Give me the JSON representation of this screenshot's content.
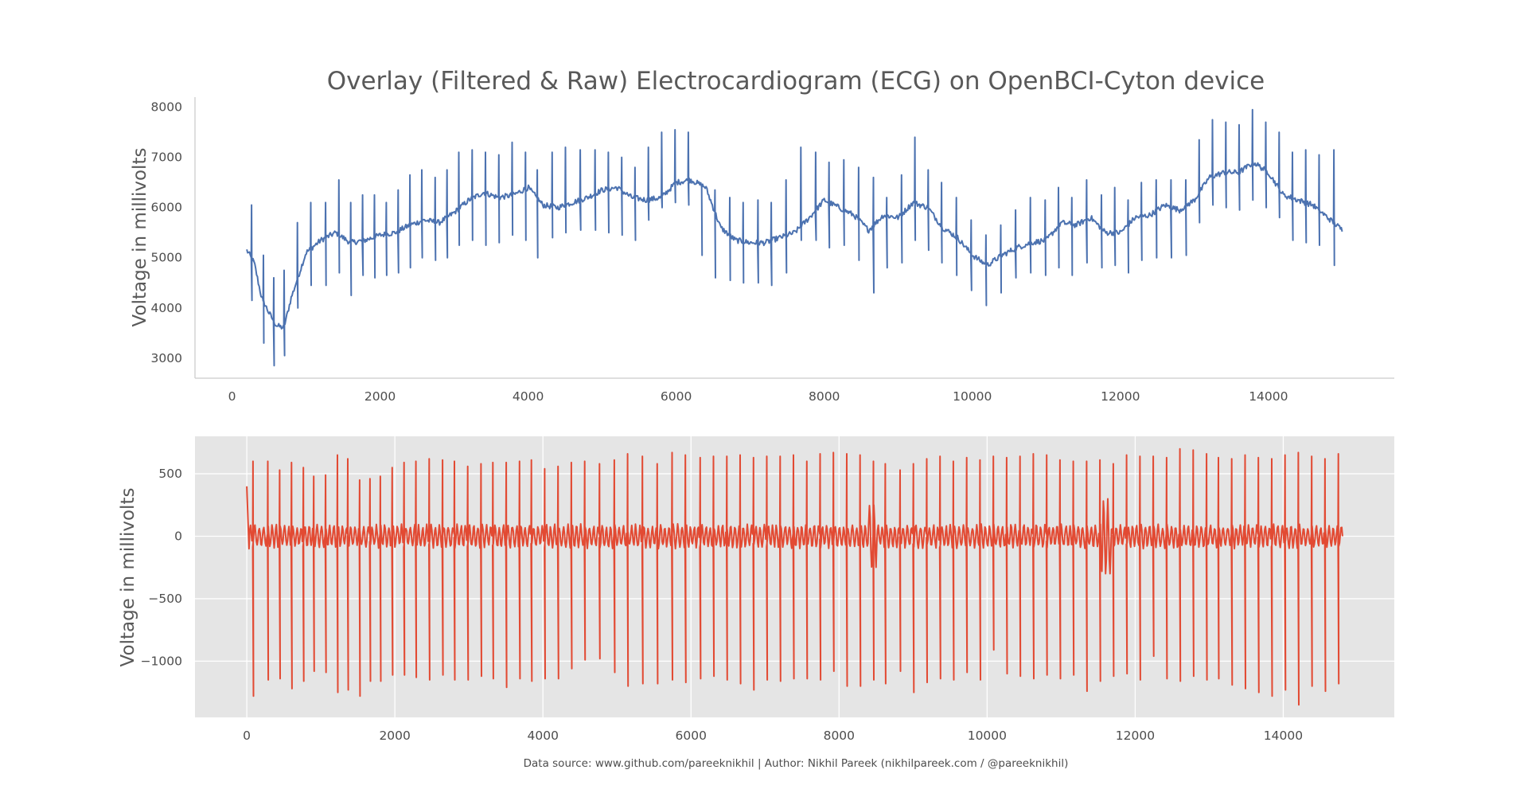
{
  "figure": {
    "title": "Overlay (Filtered & Raw) Electrocardiogram (ECG) on OpenBCI-Cyton device",
    "footer": "Data source: www.github.com/pareeknikhil | Author: Nikhil Pareek (nikhilpareek.com / @pareeknikhil)"
  },
  "chart_data": [
    {
      "type": "line",
      "name_hint": "top",
      "title": "Overlay (Filtered & Raw) Electrocardiogram (ECG) on OpenBCI-Cyton device",
      "xlabel": "",
      "ylabel": "Voltage in millivolts",
      "xlim": [
        -500,
        15700
      ],
      "ylim": [
        2600,
        8200
      ],
      "xticks": [
        0,
        2000,
        4000,
        6000,
        8000,
        10000,
        12000,
        14000
      ],
      "yticks": [
        3000,
        4000,
        5000,
        6000,
        7000,
        8000
      ],
      "grid": false,
      "background": "white",
      "color": "#4c72b0",
      "series": [
        {
          "baseline": [
            [
              200,
              5150
            ],
            [
              300,
              4900
            ],
            [
              400,
              4200
            ],
            [
              500,
              3900
            ],
            [
              600,
              3650
            ],
            [
              700,
              3600
            ],
            [
              800,
              4200
            ],
            [
              900,
              4650
            ],
            [
              1000,
              5100
            ],
            [
              1200,
              5350
            ],
            [
              1400,
              5500
            ],
            [
              1600,
              5300
            ],
            [
              1800,
              5350
            ],
            [
              2000,
              5450
            ],
            [
              2200,
              5500
            ],
            [
              2400,
              5650
            ],
            [
              2600,
              5750
            ],
            [
              2800,
              5700
            ],
            [
              3000,
              5900
            ],
            [
              3200,
              6150
            ],
            [
              3400,
              6300
            ],
            [
              3600,
              6200
            ],
            [
              3800,
              6250
            ],
            [
              4000,
              6400
            ],
            [
              4200,
              6050
            ],
            [
              4400,
              6000
            ],
            [
              4600,
              6100
            ],
            [
              4800,
              6200
            ],
            [
              5000,
              6350
            ],
            [
              5200,
              6400
            ],
            [
              5400,
              6200
            ],
            [
              5600,
              6150
            ],
            [
              5800,
              6200
            ],
            [
              6000,
              6500
            ],
            [
              6200,
              6550
            ],
            [
              6400,
              6400
            ],
            [
              6600,
              5600
            ],
            [
              6800,
              5350
            ],
            [
              7000,
              5300
            ],
            [
              7200,
              5300
            ],
            [
              7400,
              5400
            ],
            [
              7600,
              5500
            ],
            [
              7800,
              5800
            ],
            [
              8000,
              6150
            ],
            [
              8200,
              6000
            ],
            [
              8400,
              5850
            ],
            [
              8600,
              5550
            ],
            [
              8800,
              5850
            ],
            [
              9000,
              5800
            ],
            [
              9200,
              6100
            ],
            [
              9400,
              6000
            ],
            [
              9600,
              5600
            ],
            [
              9800,
              5400
            ],
            [
              10000,
              5050
            ],
            [
              10200,
              4850
            ],
            [
              10400,
              5050
            ],
            [
              10600,
              5200
            ],
            [
              10800,
              5300
            ],
            [
              11000,
              5350
            ],
            [
              11200,
              5700
            ],
            [
              11400,
              5650
            ],
            [
              11600,
              5800
            ],
            [
              11800,
              5500
            ],
            [
              12000,
              5500
            ],
            [
              12200,
              5800
            ],
            [
              12400,
              5850
            ],
            [
              12600,
              6050
            ],
            [
              12800,
              5950
            ],
            [
              13000,
              6150
            ],
            [
              13200,
              6600
            ],
            [
              13400,
              6700
            ],
            [
              13600,
              6700
            ],
            [
              13800,
              6900
            ],
            [
              14000,
              6700
            ],
            [
              14200,
              6250
            ],
            [
              14400,
              6150
            ],
            [
              14600,
              6050
            ],
            [
              14800,
              5800
            ],
            [
              15000,
              5550
            ]
          ],
          "spike_x": [
            260,
            420,
            560,
            700,
            880,
            1060,
            1260,
            1440,
            1600,
            1760,
            1920,
            2080,
            2240,
            2400,
            2560,
            2740,
            2900,
            3060,
            3240,
            3420,
            3600,
            3780,
            3960,
            4120,
            4320,
            4500,
            4700,
            4900,
            5080,
            5260,
            5440,
            5620,
            5800,
            5980,
            6160,
            6340,
            6520,
            6720,
            6900,
            7100,
            7280,
            7480,
            7680,
            7880,
            8060,
            8260,
            8460,
            8660,
            8840,
            9040,
            9220,
            9400,
            9580,
            9780,
            9980,
            10180,
            10380,
            10580,
            10780,
            10980,
            11160,
            11340,
            11540,
            11740,
            11920,
            12100,
            12280,
            12480,
            12680,
            12880,
            13060,
            13240,
            13420,
            13600,
            13780,
            13960,
            14140,
            14320,
            14500,
            14680,
            14880
          ],
          "spike_up": [
            6050,
            5050,
            4600,
            4750,
            5700,
            6100,
            6100,
            6550,
            6100,
            6250,
            6250,
            6100,
            6350,
            6650,
            6750,
            6600,
            6750,
            7100,
            7150,
            7100,
            7050,
            7300,
            7100,
            6750,
            7100,
            7200,
            7150,
            7150,
            7100,
            7000,
            6800,
            7200,
            7500,
            7550,
            7500,
            6400,
            6350,
            6200,
            6100,
            6150,
            6100,
            6550,
            7200,
            7100,
            6900,
            6950,
            6800,
            6600,
            6200,
            6650,
            7400,
            6750,
            6500,
            6200,
            5750,
            5450,
            5650,
            5950,
            6200,
            6150,
            6400,
            6200,
            6550,
            6250,
            6400,
            6150,
            6500,
            6550,
            6550,
            6550,
            7350,
            7750,
            7700,
            7650,
            7950,
            7700,
            7500,
            7100,
            7150,
            7050,
            7150
          ],
          "spike_down": [
            4150,
            3300,
            2850,
            3050,
            4000,
            4450,
            4450,
            4700,
            4250,
            4650,
            4600,
            4650,
            4700,
            4800,
            5000,
            4950,
            5000,
            5250,
            5350,
            5250,
            5300,
            5450,
            5350,
            5000,
            5400,
            5500,
            5550,
            5550,
            5500,
            5450,
            5350,
            5750,
            6000,
            6100,
            6050,
            5050,
            4600,
            4550,
            4500,
            4500,
            4450,
            4700,
            5350,
            5350,
            5200,
            5250,
            4950,
            4300,
            4800,
            4900,
            5350,
            5150,
            4900,
            4650,
            4350,
            4050,
            4300,
            4600,
            4700,
            4650,
            4800,
            4650,
            4900,
            4800,
            4850,
            4700,
            4950,
            5000,
            5000,
            5050,
            5700,
            6050,
            6000,
            5950,
            6150,
            6000,
            5800,
            5350,
            5300,
            5250,
            4850
          ]
        }
      ]
    },
    {
      "type": "line",
      "name_hint": "bottom",
      "title": "",
      "xlabel": "",
      "ylabel": "Voltage in millivolts",
      "xlim": [
        -700,
        15500
      ],
      "ylim": [
        -1450,
        800
      ],
      "xticks": [
        0,
        2000,
        4000,
        6000,
        8000,
        10000,
        12000,
        14000
      ],
      "yticks": [
        500,
        0,
        -500,
        -1000
      ],
      "ytick_labels": [
        "500",
        "0",
        "−500",
        "−1000"
      ],
      "grid": true,
      "background": "#e5e5e5",
      "color": "#e24a33",
      "series": [
        {
          "start": [
            0,
            400
          ],
          "end_x": 14800,
          "spike_x": [
            80,
            280,
            440,
            600,
            760,
            900,
            1060,
            1220,
            1360,
            1520,
            1660,
            1800,
            1960,
            2120,
            2280,
            2460,
            2640,
            2800,
            2980,
            3160,
            3320,
            3500,
            3680,
            3840,
            4020,
            4200,
            4380,
            4560,
            4760,
            4960,
            5140,
            5340,
            5540,
            5740,
            5920,
            6120,
            6300,
            6480,
            6660,
            6840,
            7020,
            7200,
            7380,
            7560,
            7740,
            7920,
            8100,
            8280,
            8460,
            8620,
            8820,
            9000,
            9180,
            9360,
            9540,
            9720,
            9900,
            10080,
            10260,
            10440,
            10620,
            10800,
            10980,
            11160,
            11340,
            11520,
            11700,
            11880,
            12060,
            12240,
            12420,
            12600,
            12780,
            12960,
            13120,
            13300,
            13480,
            13660,
            13840,
            14020,
            14200,
            14380,
            14560,
            14740
          ],
          "spike_up": [
            600,
            600,
            530,
            590,
            550,
            480,
            490,
            650,
            620,
            450,
            460,
            480,
            550,
            590,
            600,
            620,
            610,
            600,
            560,
            580,
            590,
            590,
            600,
            610,
            540,
            560,
            590,
            600,
            580,
            610,
            660,
            640,
            580,
            670,
            650,
            630,
            640,
            640,
            650,
            630,
            640,
            640,
            650,
            600,
            660,
            670,
            660,
            650,
            600,
            580,
            530,
            580,
            620,
            640,
            600,
            630,
            610,
            640,
            630,
            640,
            660,
            650,
            610,
            600,
            600,
            610,
            580,
            650,
            640,
            640,
            630,
            700,
            690,
            660,
            630,
            620,
            650,
            630,
            620,
            650,
            670,
            640,
            620,
            660
          ],
          "spike_down": [
            -1280,
            -1150,
            -1140,
            -1220,
            -1160,
            -1080,
            -1090,
            -1250,
            -1230,
            -1280,
            -1160,
            -1160,
            -1110,
            -1110,
            -1130,
            -1150,
            -1110,
            -1150,
            -1150,
            -1120,
            -1140,
            -1210,
            -1140,
            -1160,
            -1140,
            -1140,
            -1060,
            -990,
            -980,
            -1090,
            -1200,
            -1180,
            -1180,
            -1150,
            -1170,
            -1140,
            -1120,
            -1150,
            -1180,
            -1230,
            -1150,
            -1160,
            -1140,
            -1140,
            -1150,
            -1080,
            -1200,
            -1200,
            -1150,
            -1180,
            -1080,
            -1250,
            -1170,
            -1140,
            -1150,
            -1090,
            -1150,
            -910,
            -1100,
            -1120,
            -1140,
            -1110,
            -1140,
            -1110,
            -1240,
            -1160,
            -1120,
            -1100,
            -1150,
            -960,
            -1140,
            -1160,
            -1120,
            -1150,
            -1140,
            -1190,
            -1220,
            -1250,
            -1280,
            -1230,
            -1350,
            -1200,
            -1240,
            -1180
          ]
        }
      ]
    }
  ]
}
